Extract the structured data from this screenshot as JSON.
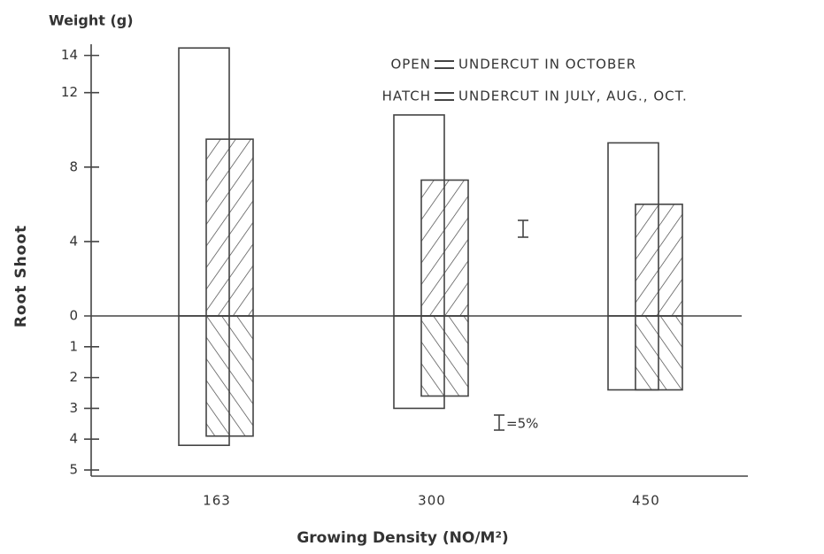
{
  "chart_data": {
    "type": "bar",
    "y_label_top": "Weight (g)",
    "y_label": "Root Shoot",
    "x_label": "Growing Density (NO/M²)",
    "categories": [
      "163",
      "300",
      "450"
    ],
    "series": [
      {
        "name": "OPEN",
        "description": "UNDERCUT IN OCTOBER",
        "hatch": false,
        "shoot": [
          14.4,
          10.8,
          9.3
        ],
        "root": [
          4.2,
          3.0,
          2.4
        ]
      },
      {
        "name": "HATCH",
        "description": "UNDERCUT IN JULY, AUG., OCT.",
        "hatch": true,
        "shoot": [
          9.5,
          7.3,
          6.0
        ],
        "root": [
          3.9,
          2.6,
          2.4
        ]
      }
    ],
    "ylim": [
      0,
      14.6
    ],
    "yticks": [
      0,
      4,
      8,
      12,
      14
    ],
    "root_ylim": [
      0,
      5.2
    ],
    "root_yticks": [
      1,
      2,
      3,
      4,
      5
    ],
    "annotation": "=5%"
  }
}
